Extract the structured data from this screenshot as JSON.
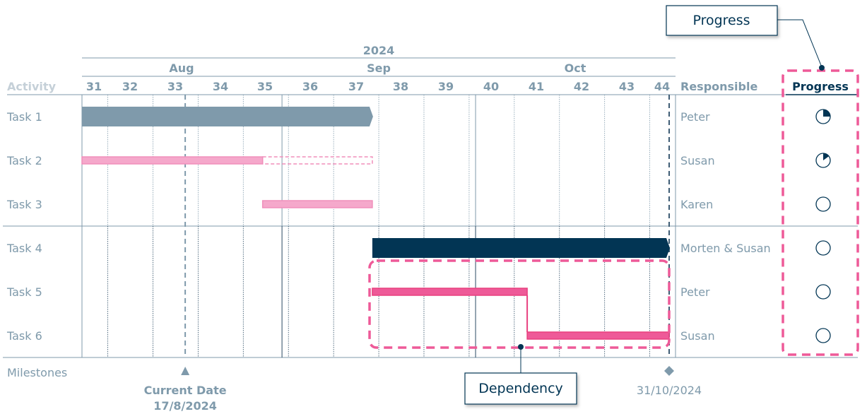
{
  "chart_data": {
    "type": "gantt",
    "year_label": "2024",
    "months": [
      {
        "label": "Aug",
        "start": "2024-08-01",
        "end": "2024-08-31"
      },
      {
        "label": "Sep",
        "start": "2024-09-01",
        "end": "2024-09-30"
      },
      {
        "label": "Oct",
        "start": "2024-10-01",
        "end": "2024-10-31"
      }
    ],
    "axis_start": "2024-08-01",
    "axis_end": "2024-10-31",
    "weeks": [
      "31",
      "32",
      "33",
      "34",
      "35",
      "36",
      "37",
      "38",
      "39",
      "40",
      "41",
      "42",
      "43",
      "44"
    ],
    "columns": {
      "activity": "Activity",
      "responsible": "Responsible",
      "progress": "Progress"
    },
    "tasks": [
      {
        "name": "Task 1",
        "responsible": "Peter",
        "start": "2024-08-01",
        "end": "2024-09-15",
        "progress": 25,
        "style": "summary",
        "color": "#7f9aab"
      },
      {
        "name": "Task 2",
        "responsible": "Susan",
        "start": "2024-08-01",
        "end": "2024-09-15",
        "actual_end": "2024-08-29",
        "progress": 15,
        "style": "task",
        "color": "#f5a8cb"
      },
      {
        "name": "Task 3",
        "responsible": "Karen",
        "start": "2024-08-29",
        "end": "2024-09-15",
        "progress": 0,
        "style": "task",
        "color": "#f5a8cb"
      },
      {
        "name": "Task 4",
        "responsible": "Morten & Susan",
        "start": "2024-09-15",
        "end": "2024-10-31",
        "progress": 0,
        "style": "summary",
        "color": "#023554"
      },
      {
        "name": "Task 5",
        "responsible": "Peter",
        "start": "2024-09-15",
        "end": "2024-10-09",
        "progress": 0,
        "style": "task",
        "color": "#ee5a98"
      },
      {
        "name": "Task 6",
        "responsible": "Susan",
        "start": "2024-10-09",
        "end": "2024-10-31",
        "progress": 0,
        "style": "task",
        "color": "#ee5a98"
      }
    ],
    "milestones_label": "Milestones",
    "milestones": [
      {
        "label": "Current Date",
        "date_label": "17/8/2024",
        "date": "2024-08-17",
        "marker": "triangle"
      },
      {
        "label": "",
        "date_label": "31/10/2024",
        "date": "2024-10-31",
        "marker": "diamond"
      }
    ],
    "callouts": [
      {
        "text": "Progress",
        "target": "progress-column"
      },
      {
        "text": "Dependency",
        "target": "task-5-task-6"
      }
    ],
    "colors": {
      "axis": "#7f9aab",
      "navy": "#023554",
      "highlight": "#ee5a98",
      "muted": "#c5d0d8"
    }
  }
}
